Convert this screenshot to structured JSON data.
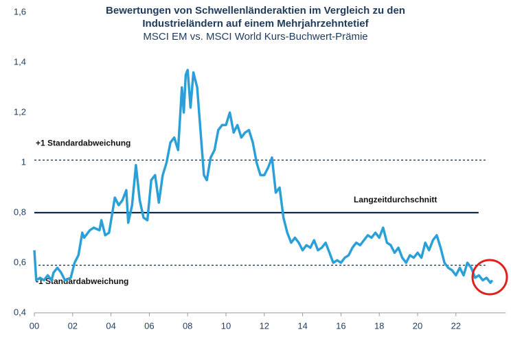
{
  "chart_data": {
    "type": "line",
    "title_lines": [
      "Bewertungen von Schwellenländeraktien im Vergleich zu den",
      "Industrieländern auf einem Mehrjahrzehntetief"
    ],
    "subtitle": "MSCI EM vs. MSCI World Kurs-Buchwert-Prämie",
    "color": "#2a9fd8",
    "x": [
      2000.0,
      2000.1,
      2000.3,
      2000.5,
      2000.7,
      2000.9,
      2001.0,
      2001.2,
      2001.4,
      2001.6,
      2001.9,
      2002.1,
      2002.3,
      2002.5,
      2002.6,
      2002.9,
      2003.1,
      2003.4,
      2003.5,
      2003.7,
      2003.9,
      2004.2,
      2004.4,
      2004.6,
      2004.8,
      2004.9,
      2005.1,
      2005.3,
      2005.5,
      2005.7,
      2005.9,
      2006.1,
      2006.3,
      2006.5,
      2006.7,
      2006.9,
      2007.1,
      2007.3,
      2007.5,
      2007.7,
      2007.8,
      2007.9,
      2008.0,
      2008.15,
      2008.3,
      2008.5,
      2008.7,
      2008.85,
      2009.0,
      2009.2,
      2009.4,
      2009.6,
      2009.8,
      2010.0,
      2010.2,
      2010.4,
      2010.6,
      2010.8,
      2011.0,
      2011.2,
      2011.4,
      2011.6,
      2011.8,
      2012.0,
      2012.2,
      2012.4,
      2012.6,
      2012.8,
      2013.0,
      2013.2,
      2013.4,
      2013.6,
      2013.8,
      2014.0,
      2014.2,
      2014.4,
      2014.6,
      2014.8,
      2015.0,
      2015.2,
      2015.4,
      2015.6,
      2015.8,
      2016.0,
      2016.2,
      2016.4,
      2016.6,
      2016.8,
      2017.0,
      2017.2,
      2017.4,
      2017.6,
      2017.8,
      2018.0,
      2018.2,
      2018.4,
      2018.6,
      2018.8,
      2019.0,
      2019.2,
      2019.4,
      2019.6,
      2019.8,
      2020.0,
      2020.2,
      2020.4,
      2020.6,
      2020.8,
      2021.0,
      2021.2,
      2021.4,
      2021.6,
      2021.8,
      2022.0,
      2022.2,
      2022.4,
      2022.6,
      2022.8,
      2023.0,
      2023.2,
      2023.4,
      2023.6,
      2023.8,
      2023.9
    ],
    "values": [
      0.65,
      0.53,
      0.54,
      0.53,
      0.55,
      0.53,
      0.56,
      0.58,
      0.56,
      0.53,
      0.54,
      0.6,
      0.63,
      0.72,
      0.7,
      0.73,
      0.74,
      0.73,
      0.77,
      0.71,
      0.72,
      0.86,
      0.83,
      0.85,
      0.89,
      0.76,
      0.83,
      0.99,
      0.85,
      0.78,
      0.77,
      0.93,
      0.95,
      0.84,
      0.95,
      1.0,
      1.08,
      1.1,
      1.05,
      1.3,
      1.2,
      1.35,
      1.37,
      1.22,
      1.36,
      1.3,
      1.1,
      0.95,
      0.93,
      1.02,
      1.05,
      1.13,
      1.15,
      1.15,
      1.2,
      1.12,
      1.15,
      1.1,
      1.12,
      1.13,
      1.08,
      1.0,
      0.95,
      0.95,
      0.98,
      1.02,
      0.88,
      0.9,
      0.78,
      0.72,
      0.68,
      0.7,
      0.68,
      0.65,
      0.67,
      0.66,
      0.69,
      0.65,
      0.66,
      0.68,
      0.64,
      0.6,
      0.61,
      0.6,
      0.62,
      0.63,
      0.66,
      0.68,
      0.67,
      0.69,
      0.71,
      0.7,
      0.72,
      0.7,
      0.74,
      0.68,
      0.67,
      0.64,
      0.66,
      0.62,
      0.6,
      0.63,
      0.62,
      0.64,
      0.62,
      0.68,
      0.65,
      0.69,
      0.71,
      0.66,
      0.6,
      0.58,
      0.57,
      0.55,
      0.58,
      0.55,
      0.6,
      0.58,
      0.54,
      0.55,
      0.53,
      0.54,
      0.52,
      0.53
    ],
    "xlim": [
      2000,
      2024.6
    ],
    "xticks": [
      {
        "value": 2000,
        "label": "00"
      },
      {
        "value": 2002,
        "label": "02"
      },
      {
        "value": 2004,
        "label": "04"
      },
      {
        "value": 2006,
        "label": "06"
      },
      {
        "value": 2008,
        "label": "08"
      },
      {
        "value": 2010,
        "label": "10"
      },
      {
        "value": 2012,
        "label": "12"
      },
      {
        "value": 2014,
        "label": "14"
      },
      {
        "value": 2016,
        "label": "16"
      },
      {
        "value": 2018,
        "label": "18"
      },
      {
        "value": 2020,
        "label": "20"
      },
      {
        "value": 2022,
        "label": "22"
      }
    ],
    "ylim": [
      0.4,
      1.6
    ],
    "yticks": [
      {
        "value": 0.4,
        "label": "0,4"
      },
      {
        "value": 0.6,
        "label": "0,6"
      },
      {
        "value": 0.8,
        "label": "0,8"
      },
      1,
      {
        "value": 1.2,
        "label": "1,2"
      },
      {
        "value": 1.4,
        "label": "1,4"
      },
      {
        "value": 1.6,
        "label": "1,6"
      }
    ],
    "reference_lines": [
      {
        "value": 1.01,
        "label": "+1 Standardabweichung",
        "style": "dashed",
        "color": "#0e2a47"
      },
      {
        "value": 0.8,
        "label": "Langzeitdurchschnitt",
        "style": "solid",
        "color": "#0e2a47"
      },
      {
        "value": 0.59,
        "label": "-1 Standardabweichung",
        "style": "dashed",
        "color": "#0e2a47"
      }
    ]
  }
}
